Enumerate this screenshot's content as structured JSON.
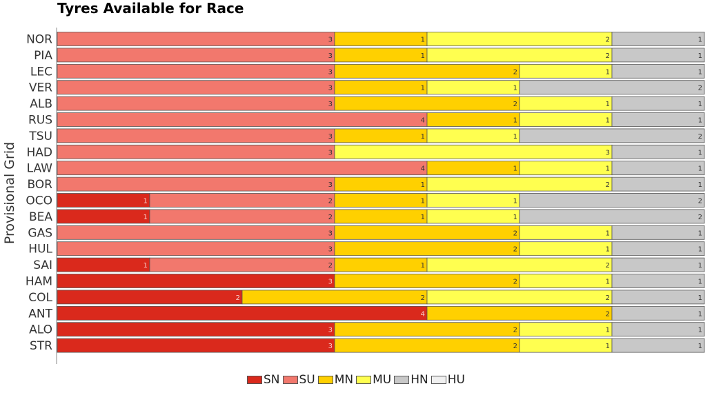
{
  "chart_data": {
    "type": "bar",
    "orientation": "horizontal",
    "stacked": true,
    "title": "Tyres Available for Race",
    "ylabel": "Provisional Grid",
    "xlabel": "",
    "categories": [
      "NOR",
      "PIA",
      "LEC",
      "VER",
      "ALB",
      "RUS",
      "TSU",
      "HAD",
      "LAW",
      "BOR",
      "OCO",
      "BEA",
      "GAS",
      "HUL",
      "SAI",
      "HAM",
      "COL",
      "ANT",
      "ALO",
      "STR"
    ],
    "series": [
      {
        "name": "SN",
        "color": "#da291c",
        "values": [
          0,
          0,
          0,
          0,
          0,
          0,
          0,
          0,
          0,
          0,
          1,
          1,
          0,
          0,
          1,
          3,
          2,
          4,
          3,
          3
        ]
      },
      {
        "name": "SU",
        "color": "#f2786d",
        "values": [
          3,
          3,
          3,
          3,
          3,
          4,
          3,
          3,
          4,
          3,
          2,
          2,
          3,
          3,
          2,
          0,
          0,
          0,
          0,
          0
        ]
      },
      {
        "name": "MN",
        "color": "#ffd000",
        "values": [
          1,
          1,
          2,
          1,
          2,
          1,
          1,
          0,
          1,
          1,
          1,
          1,
          2,
          2,
          1,
          2,
          2,
          2,
          2,
          2
        ]
      },
      {
        "name": "MU",
        "color": "#ffff50",
        "values": [
          2,
          2,
          1,
          1,
          1,
          1,
          1,
          3,
          1,
          2,
          1,
          1,
          1,
          1,
          2,
          1,
          2,
          0,
          1,
          1
        ]
      },
      {
        "name": "HN",
        "color": "#c8c8c8",
        "values": [
          1,
          1,
          1,
          2,
          1,
          1,
          2,
          1,
          1,
          1,
          2,
          2,
          1,
          1,
          1,
          1,
          1,
          1,
          1,
          1
        ]
      },
      {
        "name": "HU",
        "color": "#f0f0f0",
        "values": [
          0,
          0,
          0,
          0,
          0,
          0,
          0,
          0,
          0,
          0,
          0,
          0,
          0,
          0,
          0,
          0,
          0,
          0,
          0,
          0
        ]
      }
    ],
    "xlim": [
      0,
      7
    ],
    "legend_position": "bottom-center",
    "grid": false
  }
}
